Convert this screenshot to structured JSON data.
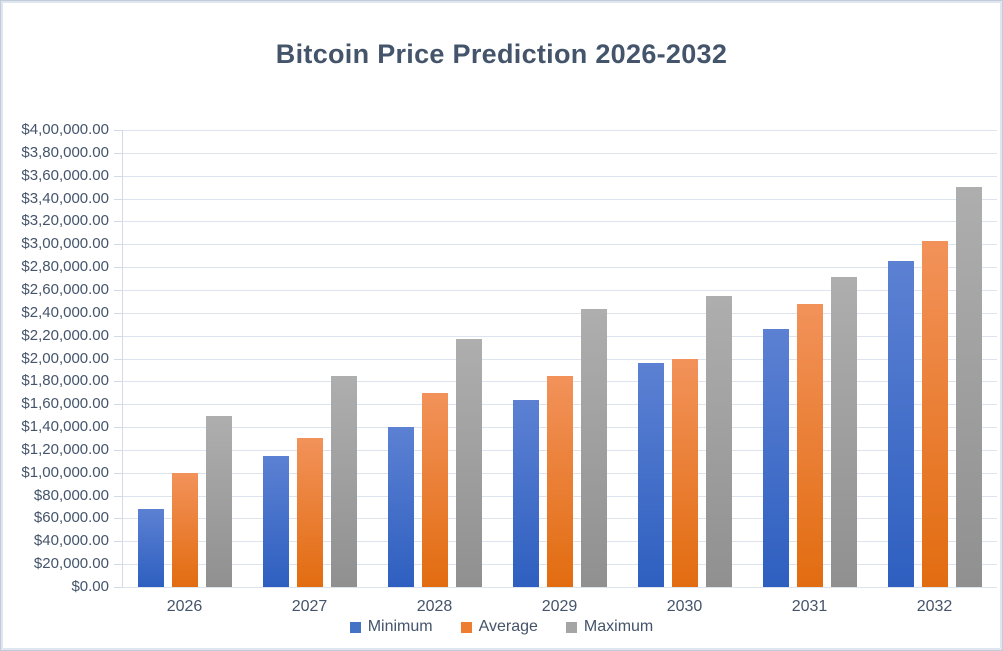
{
  "frame": {
    "background": "#ffffff",
    "border_inner_color": "#e0e6ef",
    "border_outer_color": "#c2ccd9"
  },
  "chart_data": {
    "type": "bar",
    "title": "Bitcoin Price Prediction 2026-2032",
    "categories": [
      "2026",
      "2027",
      "2028",
      "2029",
      "2030",
      "2031",
      "2032"
    ],
    "series": [
      {
        "name": "Minimum",
        "legend_color": "#4472C4",
        "gradient_top": "#5c81d3",
        "gradient_bottom": "#2e5fc0",
        "values": [
          68000,
          115000,
          140000,
          164000,
          196000,
          226000,
          285000
        ]
      },
      {
        "name": "Average",
        "legend_color": "#ED7D31",
        "gradient_top": "#f2925a",
        "gradient_bottom": "#e26c10",
        "values": [
          100000,
          130000,
          170000,
          185000,
          200000,
          248000,
          303000
        ]
      },
      {
        "name": "Maximum",
        "legend_color": "#A5A5A5",
        "gradient_top": "#aeaeae",
        "gradient_bottom": "#909090",
        "values": [
          150000,
          185000,
          217000,
          243000,
          255000,
          271000,
          350000
        ]
      }
    ],
    "xlabel": "",
    "ylabel": "",
    "ylim": [
      0,
      400000
    ],
    "y_tick_step": 20000,
    "y_tick_labels": [
      "$0.00",
      "$20,000.00",
      "$40,000.00",
      "$60,000.00",
      "$80,000.00",
      "$1,00,000.00",
      "$1,20,000.00",
      "$1,40,000.00",
      "$1,60,000.00",
      "$1,80,000.00",
      "$2,00,000.00",
      "$2,20,000.00",
      "$2,40,000.00",
      "$2,60,000.00",
      "$2,80,000.00",
      "$3,00,000.00",
      "$3,20,000.00",
      "$3,40,000.00",
      "$3,60,000.00",
      "$3,80,000.00",
      "$4,00,000.00"
    ],
    "grid": true,
    "legend_position": "bottom",
    "text_color": "#44546A",
    "gridline_color": "#dee4ee",
    "axis_line_color": "#d3dae5"
  }
}
